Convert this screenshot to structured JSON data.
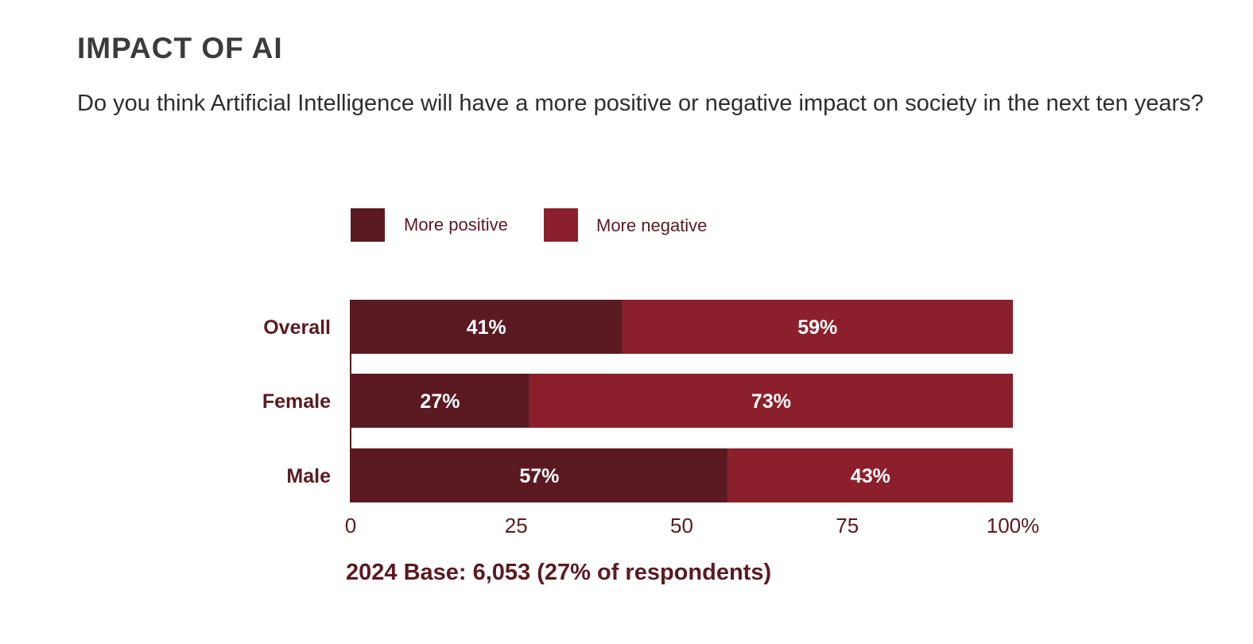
{
  "header": {
    "title": "IMPACT OF AI",
    "question": "Do you think Artificial Intelligence will have a more positive or negative impact on society in the next ten years?"
  },
  "footer": {
    "base_note": "2024 Base: 6,053 (27% of respondents)"
  },
  "colors": {
    "positive": "#5b1a22",
    "negative": "#8b1f2b",
    "text": "#5b1a22"
  },
  "chart_data": {
    "type": "bar",
    "orientation": "horizontal",
    "stacked": true,
    "categories": [
      "Overall",
      "Female",
      "Male"
    ],
    "series": [
      {
        "name": "More positive",
        "values": [
          41,
          27,
          57
        ],
        "labels": [
          "41%",
          "27%",
          "57%"
        ]
      },
      {
        "name": "More negative",
        "values": [
          59,
          73,
          43
        ],
        "labels": [
          "59%",
          "73%",
          "43%"
        ]
      }
    ],
    "xlim": [
      0,
      100
    ],
    "xticks": [
      0,
      25,
      50,
      75,
      100
    ],
    "xtick_labels": [
      "0",
      "25",
      "50",
      "75",
      "100%"
    ],
    "grid": false,
    "legend_position": "top"
  }
}
